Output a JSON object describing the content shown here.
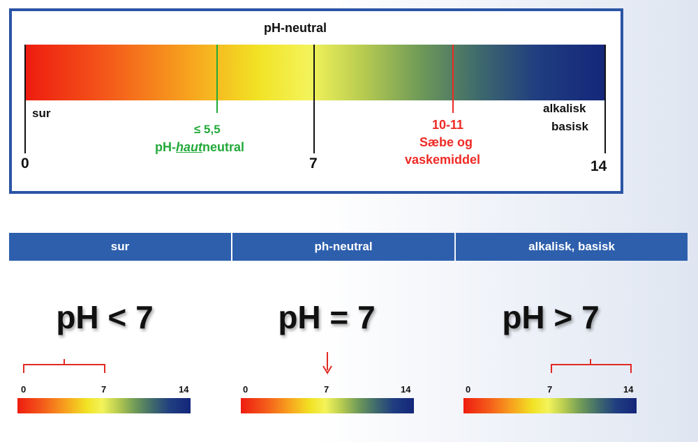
{
  "scale": {
    "title": "pH-neutral",
    "left_label": "sur",
    "right_label_line1": "alkalisk",
    "right_label_line2": "basisk",
    "min_label": "0",
    "mid_label": "7",
    "max_label": "14",
    "min": 0,
    "max": 14,
    "skin_marker": {
      "value": 5.5,
      "line1": "≤ 5,5",
      "line2_prefix": "pH-",
      "line2_italic": "haut",
      "line2_suffix": "neutral",
      "color": "#22a93a"
    },
    "soap_marker": {
      "value": 11,
      "line1": "10-11",
      "line2": "Sæbe og",
      "line3": "vaskemiddel",
      "color": "#ee2a25"
    }
  },
  "table": {
    "headers": [
      "sur",
      "ph-neutral",
      "alkalisk, basisk"
    ],
    "cells": [
      {
        "formula": "pH < 7",
        "min": "0",
        "mid": "7",
        "max": "14",
        "indicator": "bracket 0-7"
      },
      {
        "formula": "pH = 7",
        "min": "0",
        "mid": "7",
        "max": "14",
        "indicator": "arrow at 7"
      },
      {
        "formula": "pH > 7",
        "min": "0",
        "mid": "7",
        "max": "14",
        "indicator": "bracket 7-14"
      }
    ]
  },
  "colors": {
    "header": "#2d5fad",
    "border": "#2b54a5",
    "acid": "#ee1c10",
    "neutral": "#f3f35a",
    "base": "#14267a"
  }
}
